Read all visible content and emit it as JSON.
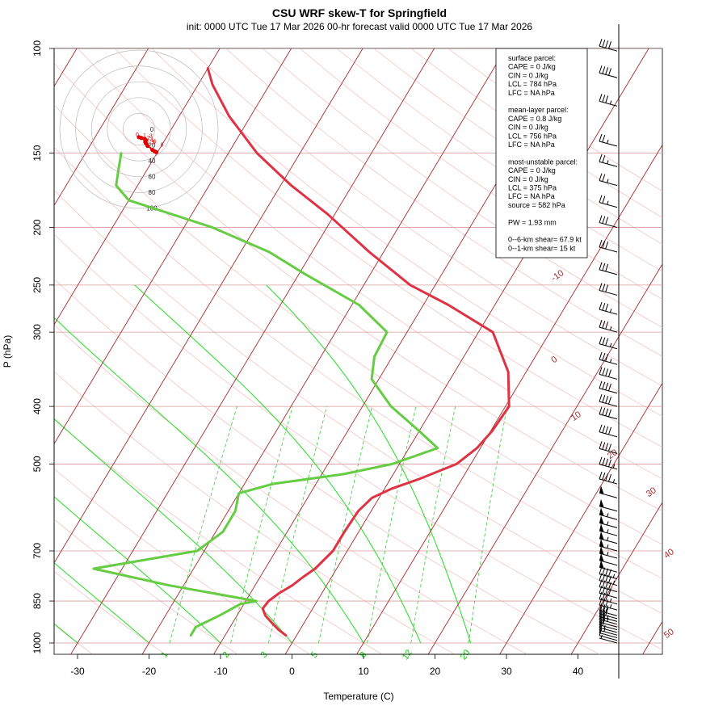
{
  "chart_data": {
    "type": "skew-t",
    "title": "CSU WRF skew-T for Springfield",
    "subtitle": "init: 0000 UTC Tue 17 Mar 2026    00-hr forecast valid 0000 UTC Tue 17 Mar 2026",
    "xlabel": "Temperature (C)",
    "ylabel": "P (hPa)",
    "xlim": [
      -33,
      52
    ],
    "ylim": [
      1050,
      100
    ],
    "x_ticks": [
      "-30",
      "-20",
      "-10",
      "0",
      "10",
      "20",
      "30",
      "40"
    ],
    "y_ticks": [
      "100",
      "150",
      "200",
      "250",
      "300",
      "400",
      "500",
      "700",
      "850",
      "1000"
    ],
    "isobars": [
      100,
      150,
      200,
      250,
      300,
      400,
      500,
      700,
      850,
      1000
    ],
    "isotherm_labels": [
      "-10",
      "0",
      "10",
      "20",
      "30",
      "40",
      "50"
    ],
    "mixing_ratio_labels": [
      "1",
      "2",
      "3",
      "5",
      "8",
      "12",
      "20"
    ],
    "temperature_profile": {
      "p": [
        971,
        950,
        925,
        900,
        875,
        850,
        825,
        800,
        775,
        750,
        700,
        650,
        600,
        570,
        550,
        530,
        500,
        470,
        440,
        400,
        350,
        300,
        270,
        250,
        220,
        190,
        170,
        150,
        130,
        115,
        108
      ],
      "t": [
        -1.5,
        -3,
        -4.5,
        -6,
        -7,
        -6.8,
        -6,
        -4.8,
        -4,
        -3,
        -2,
        -2,
        -1.8,
        -1,
        1,
        4,
        8,
        9.5,
        10.2,
        10.5,
        7.5,
        2,
        -6.5,
        -13.5,
        -22,
        -31,
        -38.5,
        -46,
        -53,
        -58,
        -60
      ]
    },
    "dewpoint_profile": {
      "p": [
        971,
        940,
        900,
        860,
        850,
        800,
        750,
        700,
        650,
        600,
        560,
        540,
        520,
        500,
        470,
        440,
        400,
        360,
        330,
        300,
        270,
        240,
        220,
        200,
        180,
        170,
        160,
        150
      ],
      "t": [
        -14.8,
        -14.8,
        -12.5,
        -10.5,
        -8.5,
        -22,
        -34,
        -21,
        -19,
        -19,
        -20,
        -16,
        -7,
        -1,
        4,
        0,
        -6,
        -11,
        -12.5,
        -12.8,
        -19,
        -29,
        -36,
        -46,
        -60,
        -63,
        -64,
        -65
      ]
    },
    "hodograph": {
      "ring_labels": [
        "0",
        "20",
        "40",
        "60",
        "80",
        "100"
      ],
      "points": [
        [
          0,
          -10
        ],
        [
          3,
          -11
        ],
        [
          7,
          -12
        ],
        [
          9,
          -14
        ],
        [
          8,
          -16
        ],
        [
          9,
          -18
        ],
        [
          11,
          -21
        ],
        [
          17,
          -26
        ],
        [
          20,
          -28
        ],
        [
          22,
          -29
        ]
      ],
      "point_labels": [
        "0",
        "1",
        "2",
        "3",
        "4",
        "5",
        "6",
        "8"
      ]
    },
    "wind_barbs": {
      "p": [
        1000,
        990,
        980,
        970,
        960,
        950,
        940,
        930,
        920,
        910,
        900,
        880,
        860,
        840,
        820,
        800,
        780,
        760,
        740,
        720,
        700,
        680,
        660,
        640,
        620,
        600,
        570,
        540,
        510,
        480,
        450,
        420,
        400,
        380,
        360,
        340,
        320,
        300,
        280,
        260,
        240,
        220,
        200,
        185,
        170,
        158,
        146,
        125,
        112,
        101
      ],
      "speed_kt": [
        5,
        10,
        10,
        15,
        15,
        20,
        20,
        25,
        25,
        30,
        30,
        35,
        35,
        40,
        40,
        45,
        45,
        50,
        50,
        55,
        55,
        55,
        55,
        55,
        55,
        50,
        50,
        45,
        45,
        40,
        40,
        40,
        40,
        40,
        40,
        35,
        35,
        35,
        35,
        30,
        30,
        30,
        30,
        25,
        25,
        25,
        25,
        35,
        40,
        40
      ]
    }
  },
  "info_box": {
    "lines": [
      "surface parcel:",
      "CAPE = 0 J/kg",
      "CIN = 0 J/kg",
      "LCL = 784 hPa",
      "LFC = NA hPa",
      "",
      "mean-layer parcel:",
      "CAPE = 0.8 J/kg",
      "CIN = 0 J/kg",
      "LCL = 756 hPa",
      "LFC = NA hPa",
      "",
      "most-unstable parcel:",
      "CAPE = 0 J/kg",
      "CIN = 0 J/kg",
      "LCL = 375 hPa",
      "LFC = NA hPa",
      "source = 582 hPa",
      "",
      "PW =  1.93 mm",
      "",
      "0--6-km shear= 67.9 kt",
      "0--1-km shear= 15 kt"
    ]
  },
  "colors": {
    "temperature": "#dd3344",
    "dewpoint": "#66cc44",
    "isotherm": "#a52a2a",
    "isobar": "#d89a9a",
    "dry_adiabat": "#f3bcbc",
    "moist_adiabat": "#22dd22",
    "mixing_ratio": "#33cc33",
    "hodo_trace": "#e00000"
  }
}
